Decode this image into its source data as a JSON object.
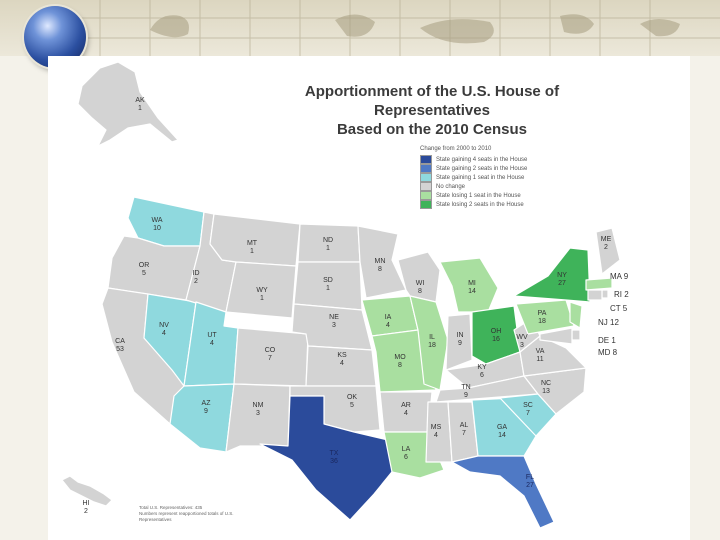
{
  "title_line1": "Apportionment of the U.S. House of Representatives",
  "title_line2": "Based on the 2010 Census",
  "legend": {
    "title": "Change from 2000 to 2010",
    "items": [
      {
        "label": "State gaining 4 seats in the House",
        "color": "#2b4b9b"
      },
      {
        "label": "State gaining 2 seats in the House",
        "color": "#4f79c5"
      },
      {
        "label": "State gaining 1 seat in the House",
        "color": "#8fd9de"
      },
      {
        "label": "No change",
        "color": "#d3d3d3"
      },
      {
        "label": "State losing 1 seat in the House",
        "color": "#a9dfa0"
      },
      {
        "label": "State losing 2 seats in the House",
        "color": "#3fb35a"
      }
    ]
  },
  "states": [
    {
      "abbr": "AK",
      "seats": "1",
      "change": "none"
    },
    {
      "abbr": "HI",
      "seats": "2",
      "change": "none"
    },
    {
      "abbr": "WA",
      "seats": "10",
      "change": "gain1"
    },
    {
      "abbr": "OR",
      "seats": "5",
      "change": "none"
    },
    {
      "abbr": "CA",
      "seats": "53",
      "change": "none"
    },
    {
      "abbr": "NV",
      "seats": "4",
      "change": "gain1"
    },
    {
      "abbr": "ID",
      "seats": "2",
      "change": "none"
    },
    {
      "abbr": "MT",
      "seats": "1",
      "change": "none"
    },
    {
      "abbr": "WY",
      "seats": "1",
      "change": "none"
    },
    {
      "abbr": "UT",
      "seats": "4",
      "change": "gain1"
    },
    {
      "abbr": "AZ",
      "seats": "9",
      "change": "gain1"
    },
    {
      "abbr": "CO",
      "seats": "7",
      "change": "none"
    },
    {
      "abbr": "NM",
      "seats": "3",
      "change": "none"
    },
    {
      "abbr": "ND",
      "seats": "1",
      "change": "none"
    },
    {
      "abbr": "SD",
      "seats": "1",
      "change": "none"
    },
    {
      "abbr": "NE",
      "seats": "3",
      "change": "none"
    },
    {
      "abbr": "KS",
      "seats": "4",
      "change": "none"
    },
    {
      "abbr": "OK",
      "seats": "5",
      "change": "none"
    },
    {
      "abbr": "TX",
      "seats": "36",
      "change": "gain4"
    },
    {
      "abbr": "MN",
      "seats": "8",
      "change": "none"
    },
    {
      "abbr": "IA",
      "seats": "4",
      "change": "lose1"
    },
    {
      "abbr": "MO",
      "seats": "8",
      "change": "lose1"
    },
    {
      "abbr": "AR",
      "seats": "4",
      "change": "none"
    },
    {
      "abbr": "LA",
      "seats": "6",
      "change": "lose1"
    },
    {
      "abbr": "WI",
      "seats": "8",
      "change": "none"
    },
    {
      "abbr": "IL",
      "seats": "18",
      "change": "lose1"
    },
    {
      "abbr": "MI",
      "seats": "14",
      "change": "lose1"
    },
    {
      "abbr": "IN",
      "seats": "9",
      "change": "none"
    },
    {
      "abbr": "OH",
      "seats": "16",
      "change": "lose2"
    },
    {
      "abbr": "KY",
      "seats": "6",
      "change": "none"
    },
    {
      "abbr": "TN",
      "seats": "9",
      "change": "none"
    },
    {
      "abbr": "MS",
      "seats": "4",
      "change": "none"
    },
    {
      "abbr": "AL",
      "seats": "7",
      "change": "none"
    },
    {
      "abbr": "GA",
      "seats": "14",
      "change": "gain1"
    },
    {
      "abbr": "FL",
      "seats": "27",
      "change": "gain2"
    },
    {
      "abbr": "SC",
      "seats": "7",
      "change": "gain1"
    },
    {
      "abbr": "NC",
      "seats": "13",
      "change": "none"
    },
    {
      "abbr": "VA",
      "seats": "11",
      "change": "none"
    },
    {
      "abbr": "WV",
      "seats": "3",
      "change": "none"
    },
    {
      "abbr": "PA",
      "seats": "18",
      "change": "lose1"
    },
    {
      "abbr": "NY",
      "seats": "27",
      "change": "lose2"
    },
    {
      "abbr": "ME",
      "seats": "2",
      "change": "none"
    },
    {
      "abbr": "MA",
      "seats": "9",
      "change": "lose1"
    },
    {
      "abbr": "RI",
      "seats": "2",
      "change": "none"
    },
    {
      "abbr": "CT",
      "seats": "5",
      "change": "none"
    },
    {
      "abbr": "NJ",
      "seats": "12",
      "change": "lose1"
    },
    {
      "abbr": "DE",
      "seats": "1",
      "change": "none"
    },
    {
      "abbr": "MD",
      "seats": "8",
      "change": "none"
    }
  ],
  "footnote": {
    "line1": "Total U.S. Representatives: 435",
    "line2": "Numbers represent reapportioned totals of U.S. Representatives"
  }
}
